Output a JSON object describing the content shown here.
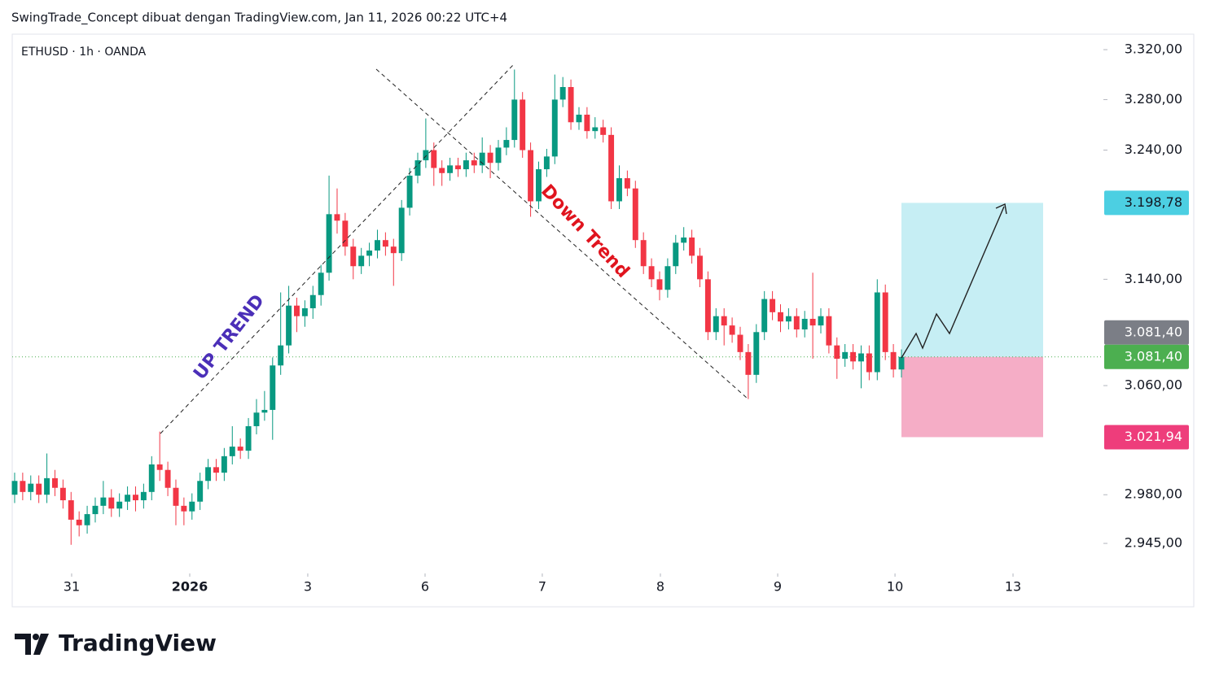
{
  "chart_data": {
    "type": "candlestick",
    "title": "SwingTrade_Concept dibuat dengan TradingView.com, Jan 11, 2026 00:22 UTC+4",
    "symbol": "ETHUSD · 1h · OANDA",
    "brand": "TradingView",
    "log": true,
    "ylim": [
      2923.6,
      3332.5
    ],
    "yticks": [
      {
        "value": 3320,
        "label": "3.320,00"
      },
      {
        "value": 3280,
        "label": "3.280,00"
      },
      {
        "value": 3240,
        "label": "3.240,00"
      },
      {
        "value": 3140,
        "label": "3.140,00"
      },
      {
        "value": 3060,
        "label": "3.060,00"
      },
      {
        "value": 2980,
        "label": "2.980,00"
      },
      {
        "value": 2945,
        "label": "2.945,00"
      }
    ],
    "xlim": [
      -0.3,
      135.05
    ],
    "xticks": [
      {
        "value": 7.07,
        "label": "31"
      },
      {
        "value": 21.72,
        "label": "2026"
      },
      {
        "value": 36.36,
        "label": "3"
      },
      {
        "value": 50.91,
        "label": "6"
      },
      {
        "value": 65.45,
        "label": "7"
      },
      {
        "value": 80.1,
        "label": "8"
      },
      {
        "value": 94.65,
        "label": "9"
      },
      {
        "value": 109.2,
        "label": "10"
      },
      {
        "value": 123.84,
        "label": "13"
      }
    ],
    "up_color": "#089981",
    "down_color": "#f23645",
    "open": [
      2980,
      2990,
      2982,
      2988,
      2980,
      2992,
      2985,
      2976,
      2962,
      2958,
      2966,
      2972,
      2978,
      2970,
      2975,
      2980,
      2976,
      2982,
      3002,
      2998,
      2985,
      2972,
      2968,
      2975,
      2990,
      3000,
      2996,
      3008,
      3015,
      3012,
      3030,
      3040,
      3042,
      3075,
      3090,
      3120,
      3112,
      3118,
      3128,
      3145,
      3190,
      3185,
      3165,
      3150,
      3158,
      3162,
      3170,
      3165,
      3160,
      3195,
      3220,
      3232,
      3240,
      3226,
      3222,
      3228,
      3225,
      3232,
      3228,
      3238,
      3230,
      3242,
      3248,
      3280,
      3240,
      3200,
      3225,
      3235,
      3280,
      3290,
      3262,
      3268,
      3255,
      3258,
      3252,
      3200,
      3218,
      3210,
      3170,
      3150,
      3140,
      3132,
      3150,
      3168,
      3172,
      3158,
      3140,
      3100,
      3112,
      3105,
      3098,
      3085,
      3068,
      3100,
      3125,
      3115,
      3108,
      3112,
      3102,
      3110,
      3105,
      3112,
      3090,
      3080,
      3085,
      3078,
      3084,
      3070,
      3130,
      3085,
      3072
    ],
    "high": [
      2996,
      2996,
      2994,
      2994,
      3010,
      2998,
      2991,
      2982,
      2968,
      2972,
      2978,
      2990,
      2984,
      2981,
      2986,
      2986,
      2988,
      3008,
      3026,
      3004,
      2991,
      2978,
      2981,
      2996,
      3006,
      3006,
      3014,
      3030,
      3021,
      3036,
      3050,
      3056,
      3081,
      3130,
      3135,
      3126,
      3124,
      3135,
      3151,
      3220,
      3210,
      3191,
      3171,
      3164,
      3168,
      3178,
      3176,
      3171,
      3201,
      3226,
      3238,
      3265,
      3246,
      3232,
      3234,
      3234,
      3238,
      3238,
      3250,
      3244,
      3248,
      3258,
      3304,
      3286,
      3246,
      3231,
      3241,
      3300,
      3298,
      3296,
      3274,
      3274,
      3266,
      3264,
      3258,
      3228,
      3224,
      3216,
      3176,
      3156,
      3146,
      3156,
      3174,
      3180,
      3178,
      3164,
      3146,
      3118,
      3118,
      3111,
      3104,
      3091,
      3106,
      3131,
      3131,
      3121,
      3118,
      3118,
      3116,
      3145,
      3118,
      3118,
      3096,
      3091,
      3091,
      3090,
      3090,
      3140,
      3136,
      3091,
      3087
    ],
    "low": [
      2974,
      2976,
      2976,
      2974,
      2974,
      2979,
      2970,
      2944,
      2950,
      2952,
      2960,
      2966,
      2964,
      2964,
      2969,
      2968,
      2970,
      2976,
      2990,
      2979,
      2958,
      2958,
      2962,
      2969,
      2984,
      2990,
      2990,
      3002,
      3006,
      3006,
      3024,
      3034,
      3020,
      3068,
      3084,
      3100,
      3104,
      3110,
      3120,
      3139,
      3175,
      3158,
      3140,
      3144,
      3150,
      3156,
      3158,
      3135,
      3154,
      3189,
      3214,
      3226,
      3212,
      3212,
      3216,
      3219,
      3219,
      3222,
      3222,
      3218,
      3224,
      3236,
      3242,
      3234,
      3188,
      3194,
      3219,
      3229,
      3274,
      3256,
      3256,
      3249,
      3249,
      3246,
      3194,
      3194,
      3204,
      3164,
      3144,
      3134,
      3124,
      3126,
      3144,
      3162,
      3152,
      3134,
      3094,
      3094,
      3090,
      3092,
      3079,
      3050,
      3062,
      3094,
      3109,
      3100,
      3102,
      3096,
      3096,
      3080,
      3099,
      3084,
      3065,
      3074,
      3072,
      3058,
      3064,
      3064,
      3079,
      3066,
      3066
    ],
    "close": [
      2990,
      2982,
      2988,
      2980,
      2992,
      2985,
      2976,
      2962,
      2958,
      2966,
      2972,
      2978,
      2970,
      2975,
      2980,
      2976,
      2982,
      3002,
      2998,
      2985,
      2972,
      2968,
      2975,
      2990,
      3000,
      2996,
      3008,
      3015,
      3012,
      3030,
      3040,
      3042,
      3075,
      3090,
      3120,
      3112,
      3118,
      3128,
      3145,
      3190,
      3185,
      3165,
      3150,
      3158,
      3162,
      3170,
      3165,
      3160,
      3195,
      3220,
      3232,
      3240,
      3226,
      3222,
      3228,
      3225,
      3232,
      3228,
      3238,
      3230,
      3242,
      3248,
      3280,
      3240,
      3200,
      3225,
      3235,
      3280,
      3290,
      3262,
      3268,
      3255,
      3258,
      3252,
      3200,
      3218,
      3210,
      3170,
      3150,
      3140,
      3132,
      3150,
      3168,
      3172,
      3158,
      3140,
      3100,
      3112,
      3105,
      3098,
      3085,
      3068,
      3100,
      3125,
      3115,
      3108,
      3112,
      3102,
      3110,
      3105,
      3112,
      3090,
      3080,
      3085,
      3078,
      3084,
      3070,
      3130,
      3085,
      3072,
      3081.4
    ],
    "annotations": [
      {
        "text": "UP TREND",
        "color": "#4b2fb8"
      },
      {
        "text": "Down Trend",
        "color": "#e0141e"
      }
    ],
    "price_labels": [
      {
        "value": 3198.78,
        "label": "3.198,78",
        "color": "#4ccfe2"
      },
      {
        "value": 3081.4,
        "label": "3.081,40",
        "color": "#7b7e86"
      },
      {
        "value": 3081.4,
        "label": "3.081,40",
        "color": "#4caf50"
      },
      {
        "value": 3021.94,
        "label": "3.021,94",
        "color": "#ee3d7b"
      }
    ],
    "target_fill": "#c6eef4",
    "stop_fill": "#f5adc6"
  }
}
